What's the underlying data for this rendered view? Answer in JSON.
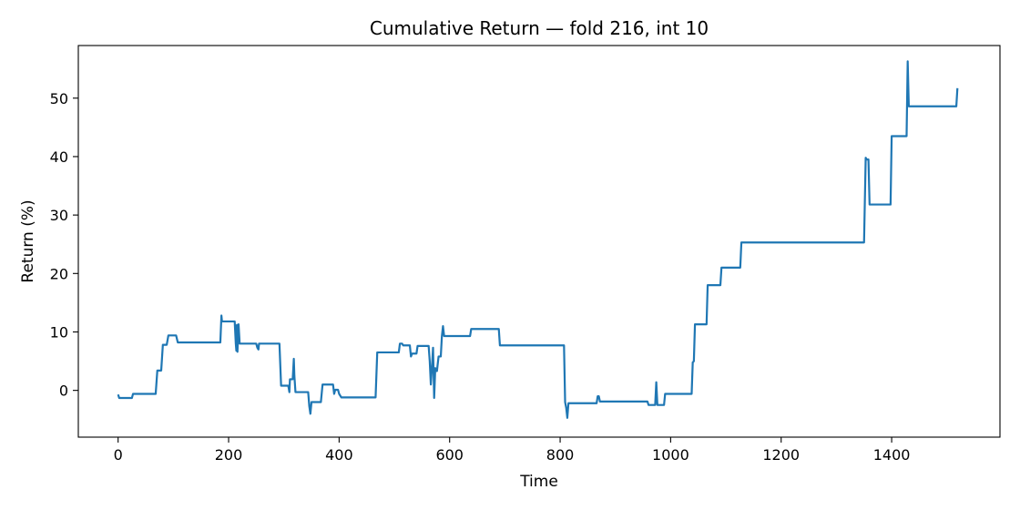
{
  "chart_data": {
    "type": "line",
    "title": "Cumulative Return — fold 216, int 10",
    "xlabel": "Time",
    "ylabel": "Return (%)",
    "xlim": [
      -72,
      1596
    ],
    "ylim": [
      -8,
      59
    ],
    "xticks": [
      0,
      200,
      400,
      600,
      800,
      1000,
      1200,
      1400
    ],
    "yticks": [
      0,
      10,
      20,
      30,
      40,
      50
    ],
    "grid": false,
    "line_color": "#1f77b4",
    "series": [
      {
        "points": [
          [
            0,
            -0.7
          ],
          [
            2,
            -1.3
          ],
          [
            25,
            -1.3
          ],
          [
            27,
            -0.6
          ],
          [
            68,
            -0.6
          ],
          [
            71,
            3.4
          ],
          [
            78,
            3.4
          ],
          [
            81,
            7.8
          ],
          [
            88,
            7.8
          ],
          [
            91,
            9.4
          ],
          [
            105,
            9.4
          ],
          [
            108,
            8.2
          ],
          [
            185,
            8.2
          ],
          [
            187,
            12.8
          ],
          [
            188,
            11.8
          ],
          [
            211,
            11.8
          ],
          [
            213,
            8.0
          ],
          [
            214,
            6.8
          ],
          [
            215,
            11.2
          ],
          [
            216,
            6.6
          ],
          [
            218,
            11.3
          ],
          [
            220,
            8.0
          ],
          [
            250,
            8.0
          ],
          [
            252,
            7.3
          ],
          [
            254,
            7.0
          ],
          [
            255,
            8.0
          ],
          [
            292,
            8.0
          ],
          [
            295,
            0.8
          ],
          [
            308,
            0.8
          ],
          [
            310,
            -0.3
          ],
          [
            311,
            1.9
          ],
          [
            316,
            1.9
          ],
          [
            318,
            5.4
          ],
          [
            319,
            2.5
          ],
          [
            321,
            -0.3
          ],
          [
            344,
            -0.3
          ],
          [
            346,
            -2.7
          ],
          [
            348,
            -4.0
          ],
          [
            350,
            -2.0
          ],
          [
            367,
            -2.0
          ],
          [
            370,
            1.0
          ],
          [
            389,
            1.0
          ],
          [
            391,
            -0.6
          ],
          [
            393,
            0.1
          ],
          [
            398,
            0.1
          ],
          [
            400,
            -0.6
          ],
          [
            404,
            -1.2
          ],
          [
            466,
            -1.2
          ],
          [
            469,
            6.5
          ],
          [
            508,
            6.5
          ],
          [
            510,
            8.0
          ],
          [
            514,
            8.0
          ],
          [
            516,
            7.7
          ],
          [
            528,
            7.7
          ],
          [
            530,
            5.8
          ],
          [
            532,
            6.3
          ],
          [
            540,
            6.3
          ],
          [
            542,
            7.6
          ],
          [
            562,
            7.6
          ],
          [
            564,
            5.0
          ],
          [
            566,
            1.0
          ],
          [
            568,
            4.0
          ],
          [
            570,
            7.3
          ],
          [
            572,
            -1.3
          ],
          [
            574,
            3.8
          ],
          [
            577,
            3.3
          ],
          [
            580,
            5.8
          ],
          [
            584,
            5.8
          ],
          [
            586,
            9.3
          ],
          [
            588,
            11.0
          ],
          [
            590,
            9.3
          ],
          [
            637,
            9.3
          ],
          [
            639,
            10.5
          ],
          [
            689,
            10.5
          ],
          [
            691,
            7.7
          ],
          [
            807,
            7.7
          ],
          [
            809,
            -2.0
          ],
          [
            811,
            -3.0
          ],
          [
            813,
            -4.7
          ],
          [
            815,
            -2.2
          ],
          [
            866,
            -2.2
          ],
          [
            868,
            -1.0
          ],
          [
            870,
            -1.0
          ],
          [
            872,
            -1.9
          ],
          [
            958,
            -1.9
          ],
          [
            960,
            -2.5
          ],
          [
            972,
            -2.5
          ],
          [
            974,
            1.4
          ],
          [
            976,
            -2.5
          ],
          [
            988,
            -2.5
          ],
          [
            990,
            -0.6
          ],
          [
            1038,
            -0.6
          ],
          [
            1040,
            4.8
          ],
          [
            1042,
            5.0
          ],
          [
            1044,
            11.3
          ],
          [
            1065,
            11.3
          ],
          [
            1067,
            18.0
          ],
          [
            1090,
            18.0
          ],
          [
            1092,
            21.0
          ],
          [
            1126,
            21.0
          ],
          [
            1128,
            25.3
          ],
          [
            1350,
            25.3
          ],
          [
            1353,
            39.8
          ],
          [
            1355,
            39.5
          ],
          [
            1358,
            39.5
          ],
          [
            1360,
            31.8
          ],
          [
            1398,
            31.8
          ],
          [
            1400,
            43.5
          ],
          [
            1427,
            43.5
          ],
          [
            1429,
            56.3
          ],
          [
            1431,
            48.6
          ],
          [
            1517,
            48.6
          ],
          [
            1519,
            51.7
          ]
        ]
      }
    ]
  }
}
